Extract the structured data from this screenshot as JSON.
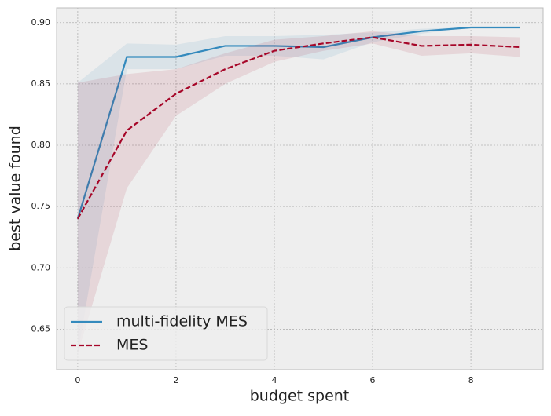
{
  "chart_data": {
    "type": "line",
    "xlabel": "budget spent",
    "ylabel": "best value found",
    "x": [
      0,
      1,
      2,
      3,
      4,
      5,
      6,
      7,
      8,
      9
    ],
    "series": [
      {
        "name": "multi-fidelity MES",
        "color": "#348ABD",
        "dash": false,
        "values": [
          0.74,
          0.872,
          0.872,
          0.881,
          0.881,
          0.88,
          0.888,
          0.893,
          0.896,
          0.896
        ],
        "upper": [
          0.851,
          0.883,
          0.882,
          0.889,
          0.889,
          0.89,
          0.892,
          0.895,
          0.896,
          0.896
        ],
        "lower": [
          0.63,
          0.862,
          0.862,
          0.873,
          0.873,
          0.87,
          0.884,
          0.891,
          0.896,
          0.896
        ]
      },
      {
        "name": "MES",
        "color": "#A60628",
        "dash": true,
        "values": [
          0.74,
          0.812,
          0.842,
          0.862,
          0.877,
          0.883,
          0.888,
          0.881,
          0.882,
          0.88
        ],
        "upper": [
          0.851,
          0.858,
          0.862,
          0.875,
          0.886,
          0.889,
          0.893,
          0.889,
          0.889,
          0.888
        ],
        "lower": [
          0.63,
          0.765,
          0.824,
          0.85,
          0.868,
          0.877,
          0.883,
          0.873,
          0.875,
          0.872
        ]
      }
    ],
    "xlim": [
      -0.43,
      9.47
    ],
    "xticks": [
      0,
      2,
      4,
      6,
      8
    ],
    "ylim": [
      0.617,
      0.912
    ],
    "yticks": [
      {
        "value": 0.65,
        "label": "0.65"
      },
      {
        "value": 0.7,
        "label": "0.70"
      },
      {
        "value": 0.75,
        "label": "0.75"
      },
      {
        "value": 0.8,
        "label": "0.80"
      },
      {
        "value": 0.85,
        "label": "0.85"
      },
      {
        "value": 0.9,
        "label": "0.90"
      }
    ],
    "grid": true,
    "legend": "lower left"
  }
}
